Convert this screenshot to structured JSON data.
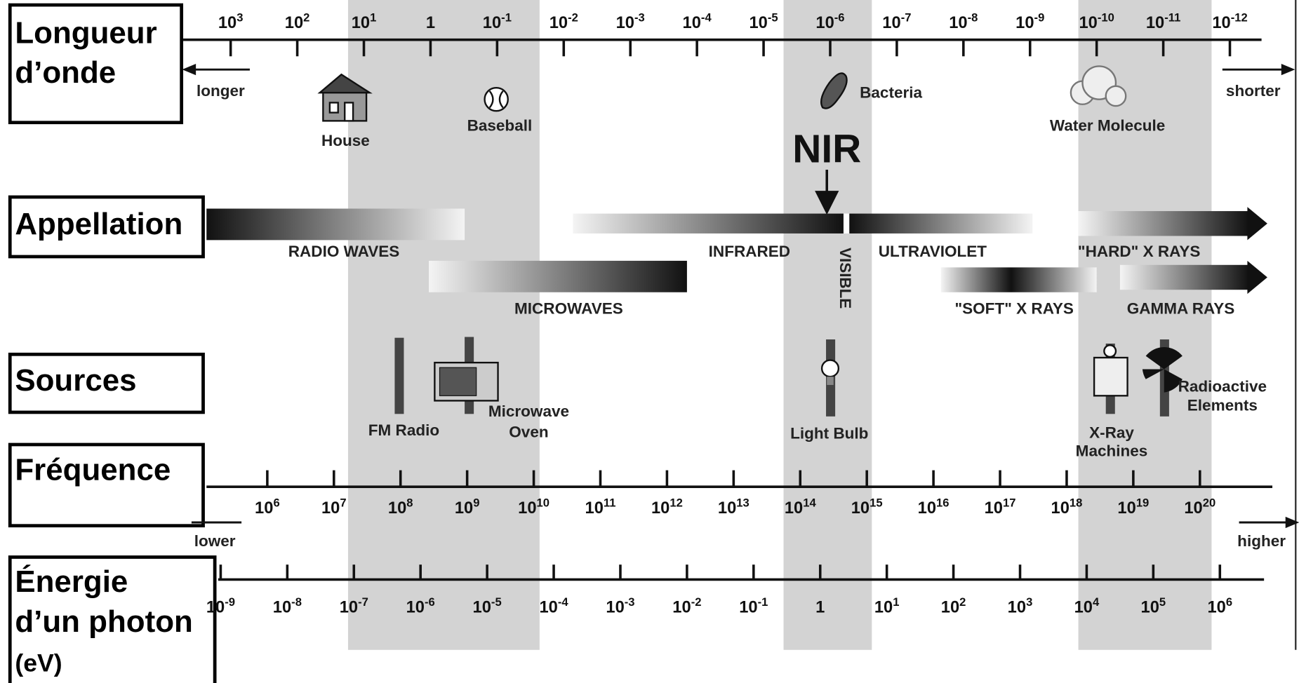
{
  "row_labels": {
    "wavelength": [
      "Longueur",
      "d’onde"
    ],
    "name": [
      "Appellation"
    ],
    "sources": [
      "Sources"
    ],
    "frequency": [
      "Fréquence"
    ],
    "energy": [
      "Énergie",
      "d’un photon",
      "(eV)"
    ]
  },
  "wavelength": {
    "ticks": [
      {
        "base": "10",
        "exp": "3"
      },
      {
        "base": "10",
        "exp": "2"
      },
      {
        "base": "10",
        "exp": "1"
      },
      {
        "base": "1"
      },
      {
        "base": "10",
        "exp": "-1"
      },
      {
        "base": "10",
        "exp": "-2"
      },
      {
        "base": "10",
        "exp": "-3"
      },
      {
        "base": "10",
        "exp": "-4"
      },
      {
        "base": "10",
        "exp": "-5"
      },
      {
        "base": "10",
        "exp": "-6"
      },
      {
        "base": "10",
        "exp": "-7"
      },
      {
        "base": "10",
        "exp": "-8"
      },
      {
        "base": "10",
        "exp": "-9"
      },
      {
        "base": "10",
        "exp": "-10"
      },
      {
        "base": "10",
        "exp": "-11"
      },
      {
        "base": "10",
        "exp": "-12"
      }
    ],
    "left": "longer",
    "right": "shorter"
  },
  "objects": [
    "House",
    "Baseball",
    "Bacteria",
    "Water Molecule"
  ],
  "nir": "NIR",
  "bands": [
    "RADIO WAVES",
    "INFRARED",
    "ULTRAVIOLET",
    "\"HARD\" X RAYS",
    "MICROWAVES",
    "\"SOFT\" X RAYS",
    "GAMMA RAYS",
    "VISIBLE"
  ],
  "sources": [
    [
      "FM Radio"
    ],
    [
      "Microwave",
      "Oven"
    ],
    [
      "Light Bulb"
    ],
    [
      "X-Ray",
      "Machines"
    ],
    [
      "Radioactive",
      "Elements"
    ]
  ],
  "frequency": {
    "ticks": [
      {
        "base": "10",
        "exp": "6"
      },
      {
        "base": "10",
        "exp": "7"
      },
      {
        "base": "10",
        "exp": "8"
      },
      {
        "base": "10",
        "exp": "9"
      },
      {
        "base": "10",
        "exp": "10"
      },
      {
        "base": "10",
        "exp": "11"
      },
      {
        "base": "10",
        "exp": "12"
      },
      {
        "base": "10",
        "exp": "13"
      },
      {
        "base": "10",
        "exp": "14"
      },
      {
        "base": "10",
        "exp": "15"
      },
      {
        "base": "10",
        "exp": "16"
      },
      {
        "base": "10",
        "exp": "17"
      },
      {
        "base": "10",
        "exp": "18"
      },
      {
        "base": "10",
        "exp": "19"
      },
      {
        "base": "10",
        "exp": "20"
      }
    ],
    "left": "lower",
    "right": "higher"
  },
  "energy": {
    "ticks": [
      {
        "base": "10",
        "exp": "-9"
      },
      {
        "base": "10",
        "exp": "-8"
      },
      {
        "base": "10",
        "exp": "-7"
      },
      {
        "base": "10",
        "exp": "-6"
      },
      {
        "base": "10",
        "exp": "-5"
      },
      {
        "base": "10",
        "exp": "-4"
      },
      {
        "base": "10",
        "exp": "-3"
      },
      {
        "base": "10",
        "exp": "-2"
      },
      {
        "base": "10",
        "exp": "-1"
      },
      {
        "base": "1"
      },
      {
        "base": "10",
        "exp": "1"
      },
      {
        "base": "10",
        "exp": "2"
      },
      {
        "base": "10",
        "exp": "3"
      },
      {
        "base": "10",
        "exp": "4"
      },
      {
        "base": "10",
        "exp": "5"
      },
      {
        "base": "10",
        "exp": "6"
      }
    ]
  }
}
